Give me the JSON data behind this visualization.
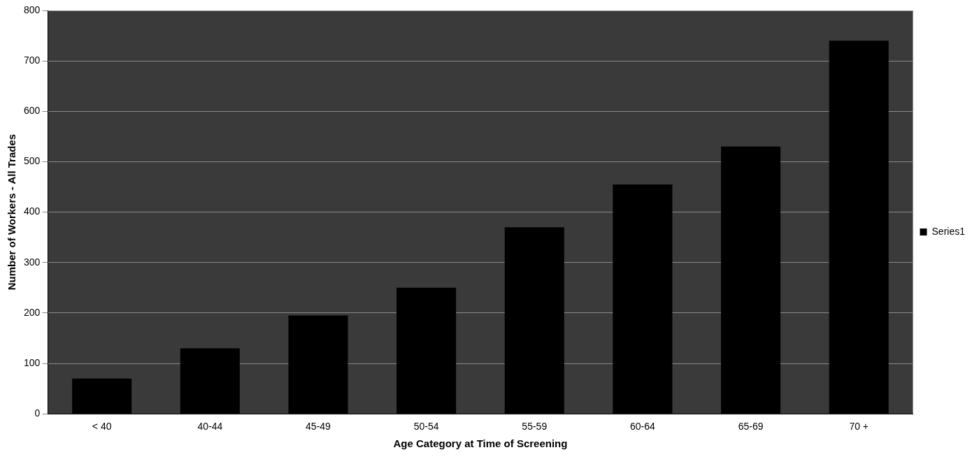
{
  "chart_data": {
    "type": "bar",
    "xlabel": "Age Category at Time of Screening",
    "ylabel": "Number of Workers - All Trades",
    "categories": [
      "< 40",
      "40-44",
      "45-49",
      "50-54",
      "55-59",
      "60-64",
      "65-69",
      "70 +"
    ],
    "series": [
      {
        "name": "Series1",
        "color": "#000000",
        "values": [
          70,
          130,
          195,
          250,
          370,
          455,
          530,
          740
        ]
      }
    ],
    "ylim": [
      0,
      800
    ],
    "yticks": [
      0,
      100,
      200,
      300,
      400,
      500,
      600,
      700,
      800
    ],
    "grid": "y",
    "legend": "right"
  }
}
